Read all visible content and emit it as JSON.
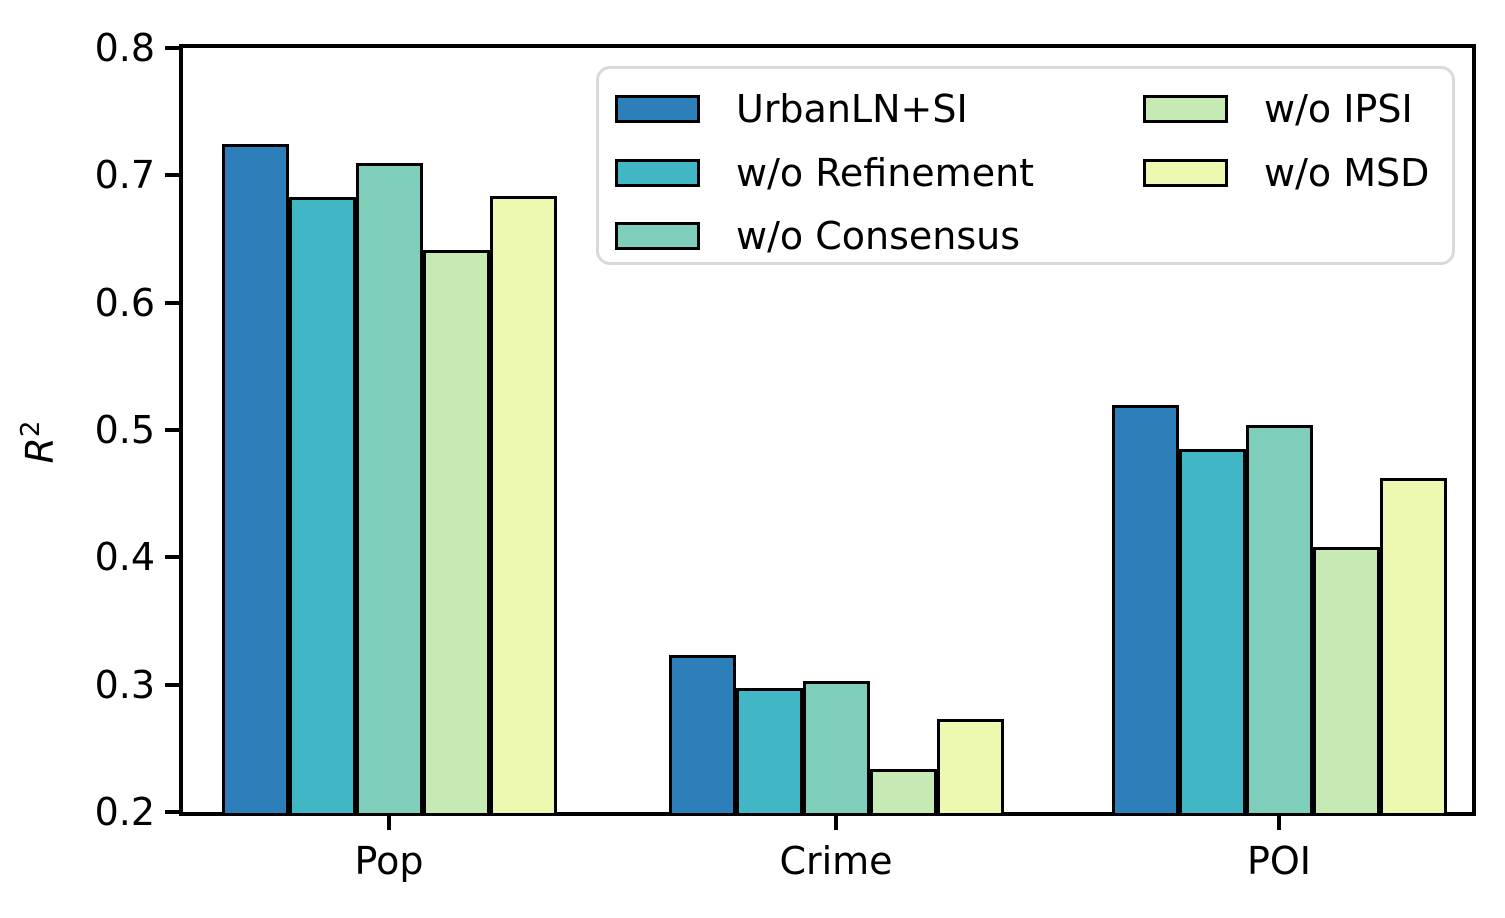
{
  "axes": {
    "ylabel_base": "R",
    "ylabel_sup": "2"
  },
  "chart_data": {
    "type": "bar",
    "title": "",
    "xlabel": "",
    "ylabel": "R^2",
    "categories": [
      "Pop",
      "Crime",
      "POI"
    ],
    "series": [
      {
        "name": "UrbanLN+SI",
        "color": "#2c7fb8",
        "values": [
          0.725,
          0.323,
          0.52
        ]
      },
      {
        "name": "w/o Refinement",
        "color": "#41b6c4",
        "values": [
          0.683,
          0.297,
          0.485
        ]
      },
      {
        "name": "w/o Consensus",
        "color": "#7fcdbb",
        "values": [
          0.71,
          0.303,
          0.504
        ]
      },
      {
        "name": "w/o IPSI",
        "color": "#c7e9b4",
        "values": [
          0.641,
          0.234,
          0.408
        ]
      },
      {
        "name": "w/o MSD",
        "color": "#edf8b1",
        "values": [
          0.684,
          0.273,
          0.462
        ]
      }
    ],
    "ylim": [
      0.2,
      0.8
    ],
    "yticks": [
      0.2,
      0.3,
      0.4,
      0.5,
      0.6,
      0.7,
      0.8
    ],
    "grid": false,
    "legend_position": "upper right inside",
    "bar_edge_color": "#000000",
    "frame_color": "#000000",
    "legend_border_color": "#d9d9d9"
  }
}
